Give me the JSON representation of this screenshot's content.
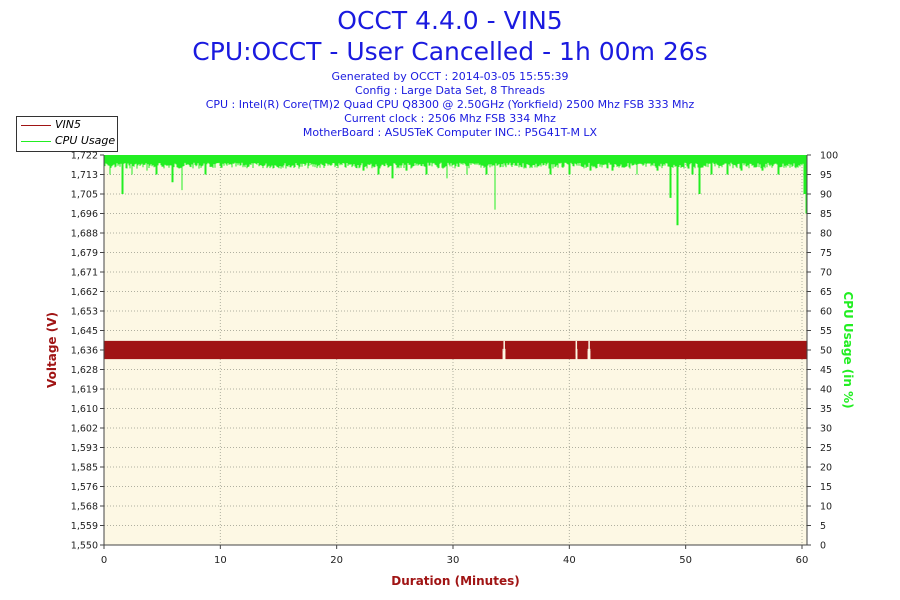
{
  "chart_data": {
    "type": "line",
    "title": "OCCT 4.4.0 - VIN5",
    "subtitle": "CPU:OCCT - User Cancelled - 1h 00m 26s",
    "info_lines": [
      "Generated by OCCT : 2014-03-05 15:55:39",
      "Config : Large Data Set, 8 Threads",
      "CPU : Intel(R) Core(TM)2 Quad CPU Q8300 @ 2.50GHz (Yorkfield) 2500 Mhz FSB 333 Mhz",
      "Current clock : 2506 Mhz FSB 334 Mhz",
      "MotherBoard : ASUSTeK Computer INC.: P5G41T-M LX"
    ],
    "xlabel": "Duration (Minutes)",
    "ylabel": "Voltage (V)",
    "y2label": "CPU Usage (in %)",
    "xlim": [
      0,
      60.43
    ],
    "ylim": [
      1.55,
      1.722
    ],
    "y2lim": [
      0,
      100
    ],
    "x_ticks": [
      "0",
      "10",
      "20",
      "30",
      "40",
      "50",
      "60"
    ],
    "y_ticks": [
      "1,550",
      "1,559",
      "1,568",
      "1,576",
      "1,585",
      "1,593",
      "1,602",
      "1,610",
      "1,619",
      "1,628",
      "1,636",
      "1,645",
      "1,653",
      "1,662",
      "1,671",
      "1,679",
      "1,688",
      "1,696",
      "1,705",
      "1,713",
      "1,722"
    ],
    "y2_ticks": [
      "0",
      "5",
      "10",
      "15",
      "20",
      "25",
      "30",
      "35",
      "40",
      "45",
      "50",
      "55",
      "60",
      "65",
      "70",
      "75",
      "80",
      "85",
      "90",
      "95",
      "100"
    ],
    "grid": true,
    "legend_position": "top-left",
    "series": [
      {
        "name": "VIN5",
        "axis": "left",
        "color": "#a01414",
        "band": [
          1.632,
          1.64
        ],
        "dips": [
          [
            34.4,
            1.6365
          ],
          [
            40.6,
            1.6365
          ],
          [
            41.7,
            1.6365
          ]
        ]
      },
      {
        "name": "CPU Usage",
        "axis": "right",
        "color": "#22ee22",
        "band": [
          98,
          100
        ],
        "dips": [
          [
            0.5,
            95
          ],
          [
            1.6,
            90
          ],
          [
            2.4,
            95
          ],
          [
            3.7,
            96
          ],
          [
            4.5,
            95
          ],
          [
            5.9,
            93
          ],
          [
            6.7,
            91
          ],
          [
            8.7,
            95
          ],
          [
            22.3,
            96
          ],
          [
            23.6,
            95
          ],
          [
            24.8,
            94
          ],
          [
            26.0,
            96
          ],
          [
            27.7,
            95
          ],
          [
            29.5,
            94
          ],
          [
            31.2,
            95
          ],
          [
            32.9,
            95
          ],
          [
            33.6,
            86
          ],
          [
            38.4,
            95
          ],
          [
            40.0,
            95
          ],
          [
            41.8,
            96
          ],
          [
            43.7,
            96
          ],
          [
            45.8,
            95
          ],
          [
            47.6,
            96
          ],
          [
            48.7,
            89
          ],
          [
            49.3,
            82
          ],
          [
            50.6,
            95
          ],
          [
            51.2,
            90
          ],
          [
            52.2,
            95
          ],
          [
            53.6,
            95
          ],
          [
            54.8,
            96
          ],
          [
            56.6,
            96
          ],
          [
            58.0,
            95
          ],
          [
            59.6,
            97
          ],
          [
            60.2,
            90
          ],
          [
            60.4,
            85
          ]
        ]
      }
    ]
  }
}
